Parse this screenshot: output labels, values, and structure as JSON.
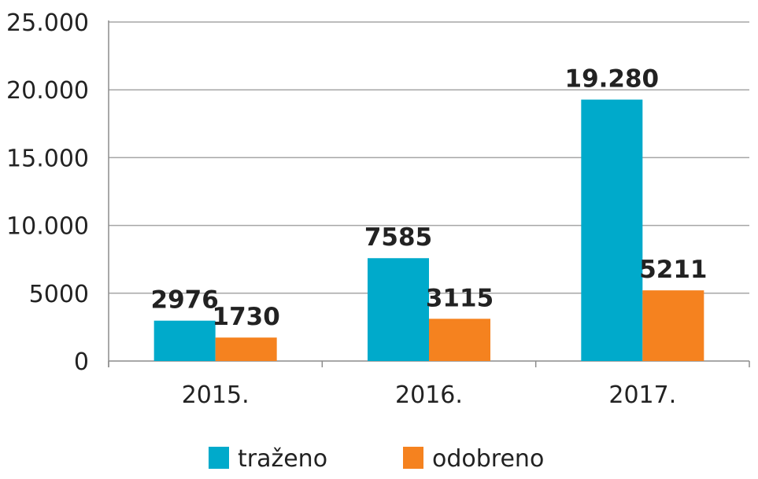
{
  "chart_data": {
    "type": "bar",
    "title": "",
    "xlabel": "",
    "ylabel": "",
    "categories": [
      "2015.",
      "2016.",
      "2017."
    ],
    "series": [
      {
        "name": "traženo",
        "color": "#00aacb",
        "values": [
          2976,
          7585,
          19280
        ],
        "value_labels": [
          "2976",
          "7585",
          "19.280"
        ]
      },
      {
        "name": "odobreno",
        "color": "#f5821f",
        "values": [
          1730,
          3115,
          5211
        ],
        "value_labels": [
          "1730",
          "3115",
          "5211"
        ]
      }
    ],
    "ylim": [
      0,
      25000
    ],
    "y_ticks": [
      0,
      5000,
      10000,
      15000,
      20000,
      25000
    ],
    "y_tick_labels": [
      "0",
      "5000",
      "10.000",
      "15.000",
      "20.000",
      "25.000"
    ],
    "grid": true,
    "legend_position": "bottom"
  }
}
